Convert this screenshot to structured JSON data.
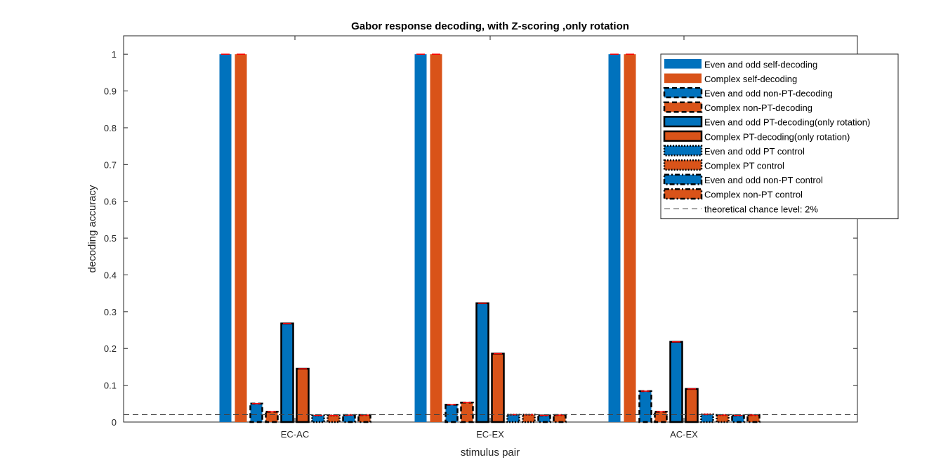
{
  "chart_data": {
    "type": "bar",
    "title": "Gabor response decoding, with Z-scoring ,only rotation",
    "xlabel": "stimulus pair",
    "ylabel": "decoding accuracy",
    "ylim": [
      0,
      1.05
    ],
    "yticks": [
      0,
      0.1,
      0.2,
      0.3,
      0.4,
      0.5,
      0.6,
      0.7,
      0.8,
      0.9,
      1
    ],
    "ytick_labels": [
      "0",
      "0.1",
      "0.2",
      "0.3",
      "0.4",
      "0.5",
      "0.6",
      "0.7",
      "0.8",
      "0.9",
      "1"
    ],
    "categories": [
      "EC-AC",
      "EC-EX",
      "AC-EX"
    ],
    "grid": false,
    "legend_position": "top-right",
    "colors": {
      "blue": "#0072BD",
      "orange": "#D95319",
      "error": "#FF0000",
      "chance": "#404040"
    },
    "series": [
      {
        "name": "Even and odd self-decoding",
        "color": "#0072BD",
        "edge": "none",
        "values": [
          1.0,
          1.0,
          1.0
        ]
      },
      {
        "name": "Complex self-decoding",
        "color": "#D95319",
        "edge": "none",
        "values": [
          1.0,
          1.0,
          1.0
        ]
      },
      {
        "name": "Even and odd non-PT-decoding",
        "color": "#0072BD",
        "edge": "dashed",
        "values": [
          0.05,
          0.047,
          0.084
        ]
      },
      {
        "name": "Complex non-PT-decoding",
        "color": "#D95319",
        "edge": "dashed",
        "values": [
          0.028,
          0.053,
          0.028
        ]
      },
      {
        "name": "Even and odd PT-decoding(only rotation)",
        "color": "#0072BD",
        "edge": "solid",
        "values": [
          0.268,
          0.323,
          0.218
        ]
      },
      {
        "name": "Complex PT-decoding(only rotation)",
        "color": "#D95319",
        "edge": "solid",
        "values": [
          0.145,
          0.186,
          0.09
        ]
      },
      {
        "name": "Even and odd PT control",
        "color": "#0072BD",
        "edge": "dotted",
        "values": [
          0.018,
          0.02,
          0.021
        ]
      },
      {
        "name": "Complex PT control",
        "color": "#D95319",
        "edge": "dotted",
        "values": [
          0.018,
          0.02,
          0.019
        ]
      },
      {
        "name": "Even and odd non-PT control",
        "color": "#0072BD",
        "edge": "dashdot",
        "values": [
          0.019,
          0.018,
          0.018
        ]
      },
      {
        "name": "Complex non-PT control",
        "color": "#D95319",
        "edge": "dashdot",
        "values": [
          0.019,
          0.019,
          0.019
        ]
      }
    ],
    "reference_line": {
      "name": "theoretical chance level: 2%",
      "value": 0.02,
      "style": "dashed"
    }
  }
}
